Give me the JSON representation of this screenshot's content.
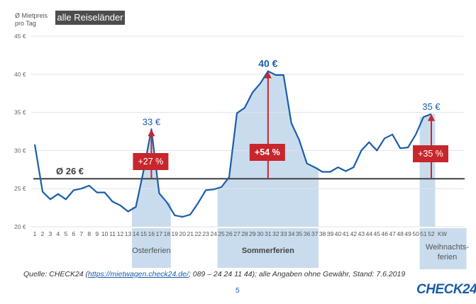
{
  "header": {
    "axis_title_line1": "Ø Mietpreis",
    "axis_title_line2": "pro Tag",
    "filter_badge": "alle Reiseländer"
  },
  "chart_data": {
    "type": "line",
    "title": "Ø Mietpreis pro Tag",
    "xlabel": "KW",
    "ylabel": "Ø Mietpreis pro Tag",
    "ylim": [
      20,
      45
    ],
    "y_ticks": [
      {
        "value": 45,
        "label": "45 €"
      },
      {
        "value": 40,
        "label": "40 €"
      },
      {
        "value": 35,
        "label": "35 €"
      },
      {
        "value": 30,
        "label": "30 €"
      },
      {
        "value": 25,
        "label": "25 €"
      },
      {
        "value": 20,
        "label": "20 €"
      }
    ],
    "grid": true,
    "x": [
      1,
      2,
      3,
      4,
      5,
      6,
      7,
      8,
      9,
      10,
      11,
      12,
      13,
      14,
      15,
      16,
      17,
      18,
      19,
      20,
      21,
      22,
      23,
      24,
      25,
      26,
      27,
      28,
      29,
      30,
      31,
      32,
      33,
      34,
      35,
      36,
      37,
      38,
      39,
      40,
      41,
      42,
      43,
      44,
      45,
      46,
      47,
      48,
      49,
      50,
      51,
      52
    ],
    "x_unit_label": "KW",
    "series": [
      {
        "name": "Ø Mietpreis pro Tag",
        "color": "#1a5ea8",
        "values": [
          30.8,
          24.6,
          23.6,
          24.3,
          23.6,
          24.8,
          25.0,
          25.4,
          24.5,
          24.5,
          23.3,
          22.8,
          22.0,
          22.6,
          27.4,
          32.8,
          24.4,
          23.2,
          21.5,
          21.3,
          21.6,
          23.1,
          24.8,
          24.9,
          25.2,
          26.5,
          34.9,
          35.6,
          37.6,
          38.8,
          40.4,
          39.9,
          39.9,
          33.6,
          31.4,
          28.3,
          27.8,
          27.2,
          27.2,
          27.8,
          27.3,
          27.8,
          30.0,
          31.1,
          30.0,
          31.6,
          32.1,
          30.3,
          30.4,
          32.1,
          34.4,
          34.8
        ]
      }
    ],
    "average": {
      "value": 26.3,
      "label": "Ø 26 €",
      "color": "#404040"
    },
    "holiday_periods": [
      {
        "name": "Osterferien",
        "start_week": 14,
        "end_week": 18,
        "bold": false
      },
      {
        "name": "Sommerferien",
        "start_week": 25,
        "end_week": 37,
        "bold": true
      },
      {
        "name": "Weihnachts-ferien",
        "label_line1": "Weihnachts-",
        "label_line2": "ferien",
        "start_week": 51,
        "end_week": 52,
        "bold": false
      }
    ],
    "holiday_color": "#c9dcee",
    "annotations": [
      {
        "week": 16,
        "peak_label": "33 €",
        "peak_value": 32.8,
        "change_label": "+27 %",
        "bold": false
      },
      {
        "week": 31,
        "peak_label": "40 €",
        "peak_value": 40.4,
        "change_label": "+54 %",
        "bold": true
      },
      {
        "week": 52,
        "peak_label": "35 €",
        "peak_value": 34.8,
        "change_label": "+35 %",
        "bold": false
      }
    ],
    "annotation_color": "#c8262d"
  },
  "footer": {
    "source_prefix": "Quelle: CHECK24 (",
    "source_link": "https://mietwagen.check24.de/",
    "source_suffix": "; 089 – 24 24 11 44); alle Angaben ohne Gewähr, Stand: 7.6.2019",
    "page_number": "5",
    "logo": "CHECK24"
  }
}
